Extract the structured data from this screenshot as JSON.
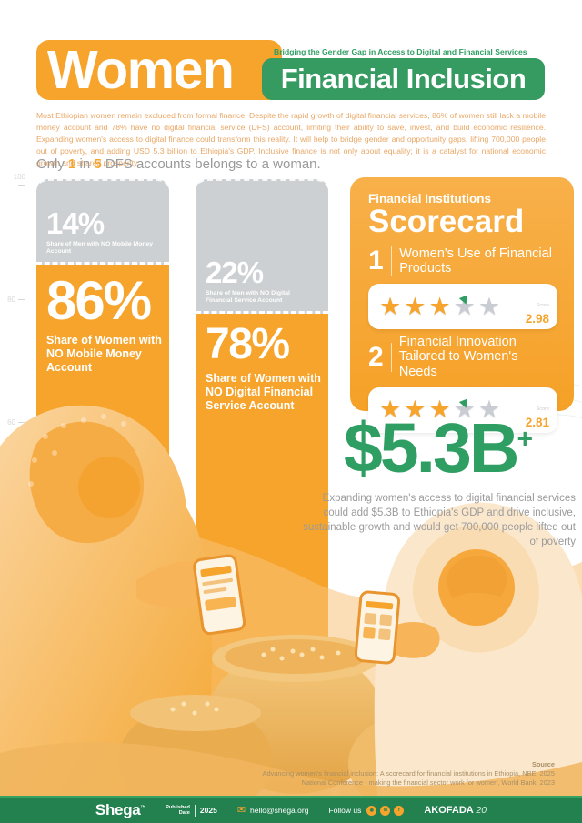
{
  "header": {
    "title": "Women",
    "tagline": "Bridging the Gender Gap in Access to Digital and Financial Services",
    "subtitle": "Financial Inclusion"
  },
  "intro": "Most Ethiopian women remain excluded from formal finance. Despite the rapid growth of digital financial services, 86% of women still lack a mobile money account and 78% have no digital financial service (DFS) account, limiting their ability to save, invest, and build economic resilience. Expanding women's access to digital finance could transform this reality. It will help to bridge gender and opportunity gaps, lifting 700,000 people out of poverty, and adding USD 5.3 billion to Ethiopia's GDP. Inclusive finance is not only about equality; it is a catalyst for national economic growth and shared prosperity.",
  "headline": {
    "p1": "Only ",
    "n1": "1",
    "p2": " in ",
    "n2": "5",
    "p3": " DFS accounts belongs to a woman."
  },
  "chart_data": {
    "type": "bar",
    "subtype": "stacked-percentage-columns",
    "ylim": [
      0,
      100
    ],
    "yticks": [
      "100",
      "80",
      "60"
    ],
    "grid": false,
    "colors": {
      "men": "#CDD0D2",
      "women": "#F6A42C"
    },
    "bars": [
      {
        "topic": "Mobile Money Account",
        "segments": [
          {
            "series": "Men",
            "value": 14,
            "label": "14%",
            "desc": "Share of Men with NO Mobile Money Account"
          },
          {
            "series": "Women",
            "value": 86,
            "label": "86%",
            "desc": "Share of Women with NO Mobile Money Account"
          }
        ]
      },
      {
        "topic": "Digital Financial Service Account",
        "segments": [
          {
            "series": "Men",
            "value": 22,
            "label": "22%",
            "desc": "Share of Men with NO Digital Financial Service Account"
          },
          {
            "series": "Women",
            "value": 78,
            "label": "78%",
            "desc": "Share of Women with NO Digital Financial Service Account"
          }
        ]
      }
    ]
  },
  "scorecard": {
    "kicker": "Financial Institutions",
    "title": "Scorecard",
    "items": [
      {
        "rank": "1",
        "label": "Women's Use of Financial Products",
        "stars_filled": 3,
        "stars_total": 5,
        "score_label": "Score",
        "score": "2.98"
      },
      {
        "rank": "2",
        "label": "Financial Innovation Tailored to Women's Needs",
        "stars_filled": 3,
        "stars_total": 5,
        "score_label": "Score",
        "score": "2.81"
      }
    ]
  },
  "impact": {
    "figure": "$5.3B",
    "figure_sup": "+",
    "desc": "Expanding women's access to digital financial services could add $5.3B to Ethiopia's GDP and drive inclusive, sustainable growth and would get 700,000 people lifted out of poverty"
  },
  "source": {
    "label": "Source",
    "line1": "Advancing women's financial inclusion: A scorecard for financial institutions in Ethiopia, NBE, 2025",
    "line2": "National Conference - making the financial sector work for women, World Bank, 2023"
  },
  "footer": {
    "brand": "Shega",
    "brand_tm": "™",
    "published_l1": "Published",
    "published_l2": "Date",
    "year": "2025",
    "email": "hello@shega.org",
    "follow": "Follow us",
    "socials": [
      "◉",
      "in",
      "f"
    ],
    "program": "AKOFADA",
    "program_no": "20"
  },
  "icons": {
    "star": "★",
    "mail": "✉"
  },
  "colors": {
    "orange": "#F6A42C",
    "green": "#2F9E62",
    "green_dark": "#23804F",
    "gray_bar": "#CDD0D2"
  }
}
